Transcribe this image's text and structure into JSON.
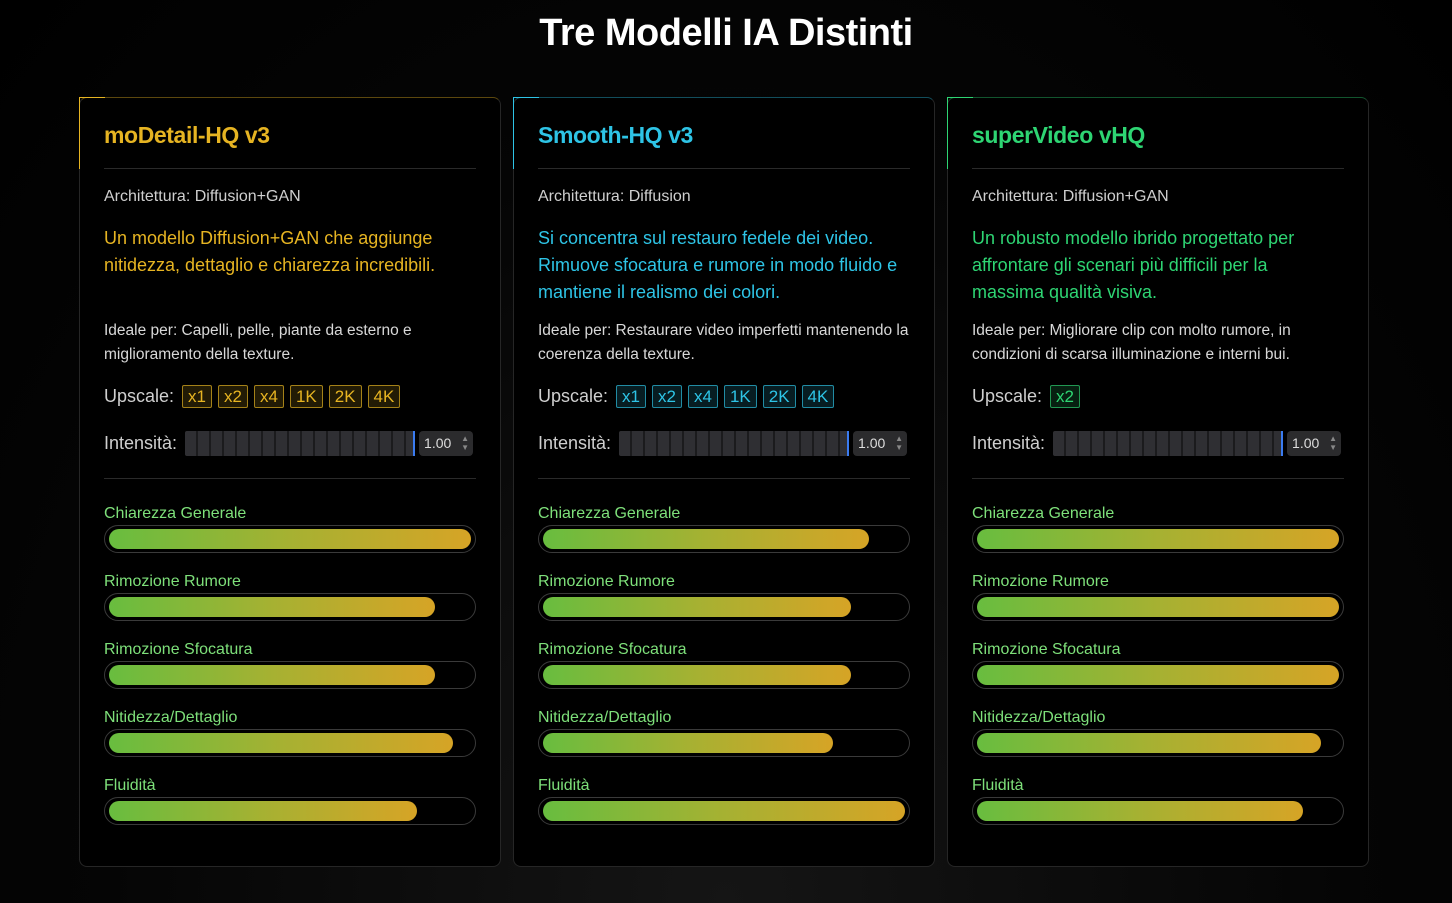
{
  "page": {
    "title": "Tre Modelli IA Distinti"
  },
  "cards": [
    {
      "name": "moDetail-HQ v3",
      "accent": "#e6b422",
      "architecture": "Architettura: Diffusion+GAN",
      "description": "Un modello Diffusion+GAN che aggiunge nitidezza, dettaglio e chiarezza incredibili.",
      "ideal": "Ideale per: Capelli, pelle, piante da esterno e miglioramento della texture.",
      "upscale_label": "Upscale:",
      "upscale_options": [
        "x1",
        "x2",
        "x4",
        "1K",
        "2K",
        "4K"
      ],
      "intensity_label": "Intensità:",
      "intensity_value": "1.00",
      "metrics": [
        {
          "label": "Chiarezza Generale",
          "value": 1.0
        },
        {
          "label": "Rimozione Rumore",
          "value": 0.9
        },
        {
          "label": "Rimozione Sfocatura",
          "value": 0.9
        },
        {
          "label": "Nitidezza/Dettaglio",
          "value": 0.95
        },
        {
          "label": "Fluidità",
          "value": 0.85
        }
      ]
    },
    {
      "name": "Smooth-HQ v3",
      "accent": "#2ec4e6",
      "architecture": "Architettura: Diffusion",
      "description": "Si concentra sul restauro fedele dei video. Rimuove sfocatura e rumore in modo fluido e mantiene il realismo dei colori.",
      "ideal": "Ideale per: Restaurare video imperfetti mantenendo la coerenza della texture.",
      "upscale_label": "Upscale:",
      "upscale_options": [
        "x1",
        "x2",
        "x4",
        "1K",
        "2K",
        "4K"
      ],
      "intensity_label": "Intensità:",
      "intensity_value": "1.00",
      "metrics": [
        {
          "label": "Chiarezza Generale",
          "value": 0.9
        },
        {
          "label": "Rimozione Rumore",
          "value": 0.85
        },
        {
          "label": "Rimozione Sfocatura",
          "value": 0.85
        },
        {
          "label": "Nitidezza/Dettaglio",
          "value": 0.8
        },
        {
          "label": "Fluidità",
          "value": 1.0
        }
      ]
    },
    {
      "name": "superVideo vHQ",
      "accent": "#2ed573",
      "architecture": "Architettura: Diffusion+GAN",
      "description": "Un robusto modello ibrido progettato per affrontare gli scenari più difficili per la massima qualità visiva.",
      "ideal": "Ideale per: Migliorare clip con molto rumore, in condizioni di scarsa illuminazione e interni bui.",
      "upscale_label": "Upscale:",
      "upscale_options": [
        "x2"
      ],
      "intensity_label": "Intensità:",
      "intensity_value": "1.00",
      "metrics": [
        {
          "label": "Chiarezza Generale",
          "value": 1.0
        },
        {
          "label": "Rimozione Rumore",
          "value": 1.0
        },
        {
          "label": "Rimozione Sfocatura",
          "value": 1.0
        },
        {
          "label": "Nitidezza/Dettaglio",
          "value": 0.95
        },
        {
          "label": "Fluidità",
          "value": 0.9
        }
      ]
    }
  ]
}
